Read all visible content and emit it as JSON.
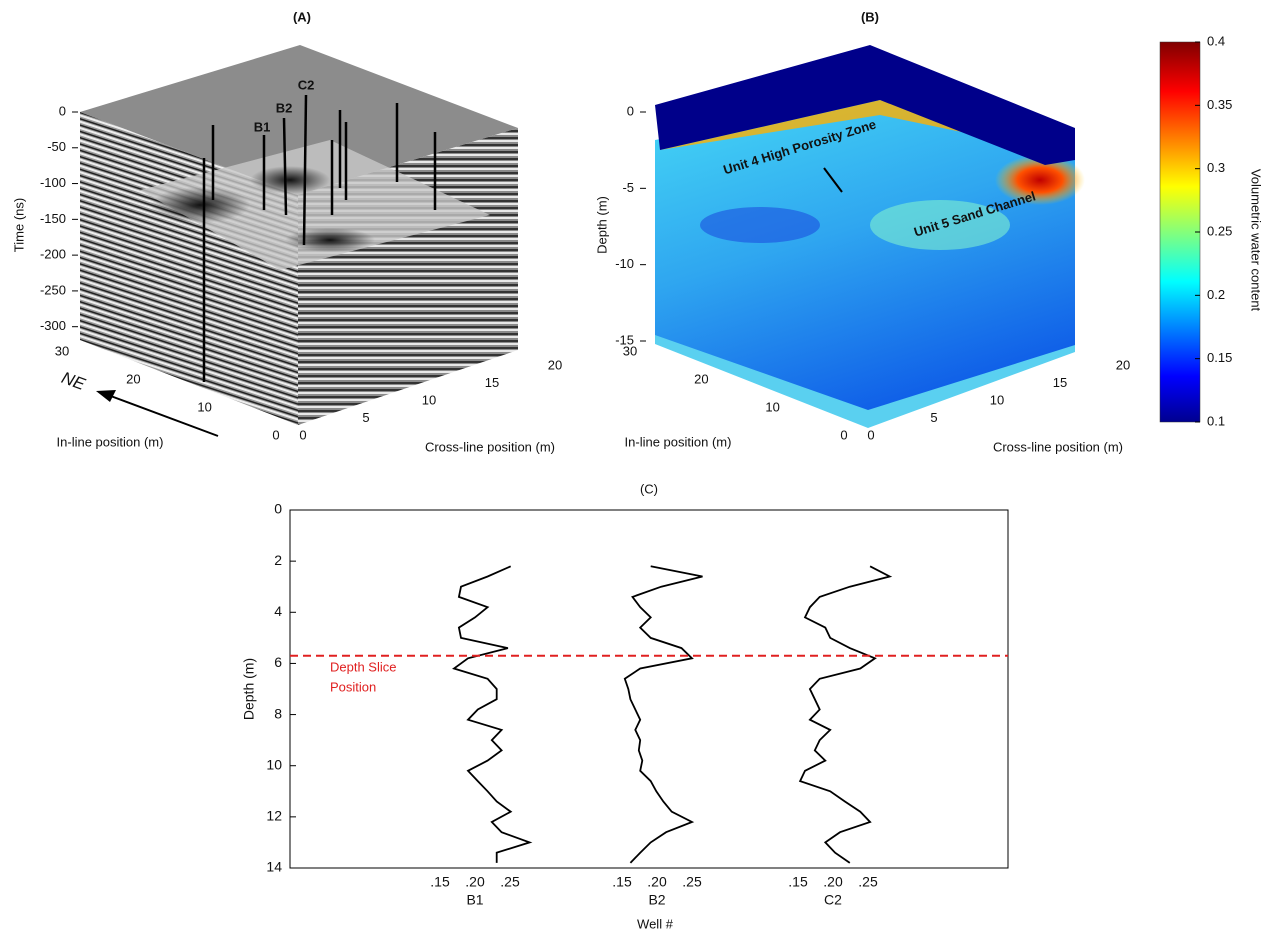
{
  "panel_a": {
    "title": "(A)",
    "time_label": "Time (ns)",
    "zlim": [
      -320,
      0
    ],
    "zticks": [
      0,
      -50,
      -100,
      -150,
      -200,
      -250,
      -300
    ],
    "inline_label": "In-line position (m)",
    "inline_lim": [
      0,
      30
    ],
    "inline_ticks": [
      30,
      20,
      10,
      0
    ],
    "crossline_label": "Cross-line position (m)",
    "crossline_lim": [
      0,
      20
    ],
    "crossline_ticks": [
      0,
      5,
      10,
      15,
      20
    ],
    "arrow_label": "NE",
    "well_labels": [
      "B1",
      "B2",
      "C2"
    ]
  },
  "panel_b": {
    "title": "(B)",
    "depth_label": "Depth (m)",
    "zlim": [
      -15,
      0
    ],
    "zticks": [
      0,
      -5,
      -10,
      -15
    ],
    "inline_label": "In-line position (m)",
    "inline_lim": [
      0,
      30
    ],
    "inline_ticks": [
      30,
      20,
      10,
      0
    ],
    "crossline_label": "Cross-line position (m)",
    "crossline_lim": [
      0,
      20
    ],
    "crossline_ticks": [
      0,
      5,
      10,
      15,
      20
    ],
    "annotations": [
      "Unit 4 High Porosity Zone",
      "Unit 5 Sand Channel"
    ]
  },
  "colorbar": {
    "label": "Volumetric water content",
    "lim": [
      0.1,
      0.4
    ],
    "ticks": [
      0.1,
      0.15,
      0.2,
      0.25,
      0.3,
      0.35,
      0.4
    ]
  },
  "panel_c": {
    "title": "(C)",
    "ylabel": "Depth (m)",
    "xlabel": "Well #",
    "ylim": [
      0,
      14
    ],
    "yticks": [
      0,
      2,
      4,
      6,
      8,
      10,
      12,
      14
    ],
    "well_ticks": [
      {
        "value": 0.15,
        "label": ".15"
      },
      {
        "value": 0.2,
        "label": ".20"
      },
      {
        "value": 0.25,
        "label": ".25"
      }
    ],
    "depth_slice": 5.7,
    "depth_slice_label": [
      "Depth Slice",
      "Position"
    ],
    "depths": [
      2.2,
      2.6,
      3.0,
      3.4,
      3.8,
      4.2,
      4.6,
      5.0,
      5.4,
      5.8,
      6.2,
      6.6,
      7.0,
      7.4,
      7.8,
      8.2,
      8.6,
      9.0,
      9.4,
      9.8,
      10.2,
      10.6,
      11.0,
      11.4,
      11.8,
      12.2,
      12.6,
      13.0,
      13.4,
      13.8
    ],
    "wells": [
      {
        "name": "B1",
        "values": [
          0.251,
          0.218,
          0.18,
          0.177,
          0.218,
          0.2,
          0.177,
          0.18,
          0.247,
          0.19,
          0.17,
          0.218,
          0.231,
          0.231,
          0.204,
          0.19,
          0.238,
          0.224,
          0.238,
          0.218,
          0.19,
          0.204,
          0.218,
          0.231,
          0.251,
          0.224,
          0.238,
          0.278,
          0.231,
          0.231
        ]
      },
      {
        "name": "B2",
        "values": [
          0.191,
          0.265,
          0.206,
          0.165,
          0.176,
          0.191,
          0.176,
          0.191,
          0.235,
          0.25,
          0.176,
          0.154,
          0.159,
          0.162,
          0.169,
          0.176,
          0.169,
          0.176,
          0.174,
          0.179,
          0.176,
          0.191,
          0.199,
          0.209,
          0.221,
          0.25,
          0.213,
          0.191,
          0.176,
          0.162
        ]
      },
      {
        "name": "C2",
        "values": [
          0.253,
          0.281,
          0.224,
          0.181,
          0.167,
          0.16,
          0.189,
          0.196,
          0.224,
          0.26,
          0.239,
          0.181,
          0.167,
          0.174,
          0.181,
          0.167,
          0.196,
          0.181,
          0.174,
          0.189,
          0.16,
          0.153,
          0.196,
          0.217,
          0.239,
          0.253,
          0.21,
          0.189,
          0.203,
          0.224
        ]
      }
    ]
  }
}
